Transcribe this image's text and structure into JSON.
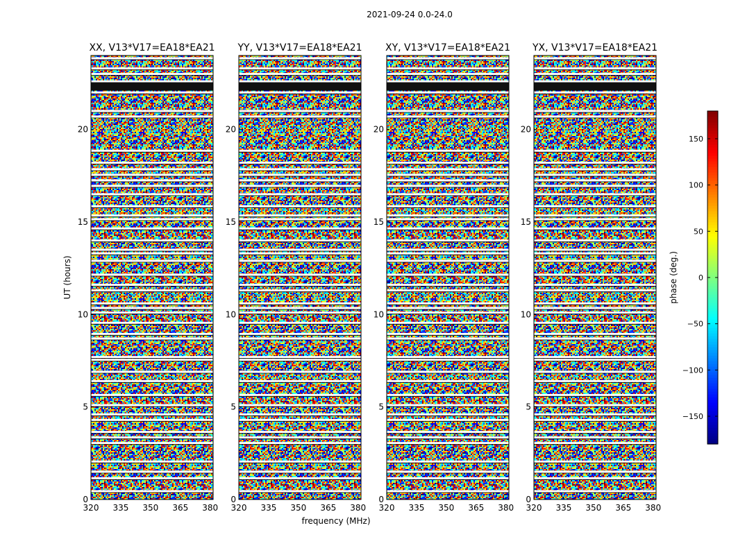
{
  "suptitle": "2021-09-24 0.0-24.0",
  "chart_data": {
    "type": "heatmap",
    "title": "2021-09-24 0.0-24.0",
    "xlabel": "frequency (MHz)",
    "ylabel": "UT (hours)",
    "xlim": [
      320,
      381.5
    ],
    "ylim": [
      0,
      24
    ],
    "x_ticks": [
      320,
      335,
      350,
      365,
      380
    ],
    "y_ticks": [
      0,
      5,
      10,
      15,
      20
    ],
    "colorbar": {
      "label": "phase (deg.)",
      "range": [
        -180,
        180
      ],
      "ticks": [
        -150,
        -100,
        -50,
        0,
        50,
        100,
        150
      ],
      "colormap": "jet"
    },
    "panels": [
      {
        "title": "XX, V13*V17=EA18*EA21",
        "polarization": "XX"
      },
      {
        "title": "YY, V13*V17=EA18*EA21",
        "polarization": "YY"
      },
      {
        "title": "XY, V13*V17=EA18*EA21",
        "polarization": "XY"
      },
      {
        "title": "YX, V13*V17=EA18*EA21",
        "polarization": "YX"
      }
    ],
    "flagged_gaps_hours": [
      0.45,
      1.15,
      1.5,
      2.05,
      3.05,
      3.35,
      3.65,
      4.3,
      4.6,
      5.1,
      5.65,
      6.4,
      6.9,
      7.55,
      7.7,
      8.7,
      8.95,
      9.55,
      10.1,
      10.35,
      10.6,
      11.3,
      11.6,
      12.15,
      12.9,
      13.3,
      13.5,
      14.0,
      14.65,
      15.15,
      15.35,
      15.85,
      16.5,
      16.95,
      17.25,
      17.55,
      17.85,
      18.2,
      18.85,
      20.7,
      21.0,
      22.0,
      22.2,
      22.6,
      23.0,
      23.3,
      23.85
    ]
  }
}
